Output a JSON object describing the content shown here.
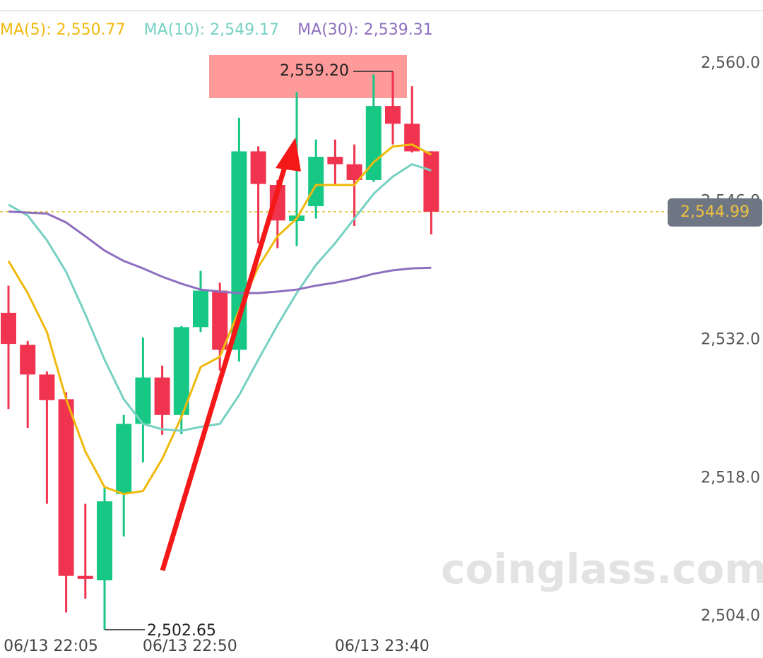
{
  "chart_data": {
    "type": "candlestick",
    "categories": [
      "06/13 22:05",
      null,
      null,
      null,
      null,
      null,
      null,
      null,
      null,
      "06/13 22:50",
      null,
      null,
      null,
      null,
      null,
      null,
      null,
      null,
      null,
      "06/13 23:40",
      null,
      null,
      null
    ],
    "open": [
      2534.75,
      2531.5,
      2528.5,
      2526.0,
      2508.1,
      2507.65,
      2516.4,
      2523.5,
      2528.2,
      2524.4,
      2533.3,
      2537.0,
      2531.0,
      2551.1,
      2547.7,
      2544.05,
      2545.55,
      2550.55,
      2549.8,
      2548.2,
      2555.7,
      2553.9,
      2551.1
    ],
    "high": [
      2537.5,
      2531.9,
      2528.8,
      2526.7,
      2515.4,
      2517.1,
      2524.4,
      2532.25,
      2529.4,
      2533.4,
      2539.0,
      2537.8,
      2554.5,
      2551.6,
      2548.2,
      2557.1,
      2552.3,
      2552.3,
      2551.8,
      2558.9,
      2559.2,
      2557.7,
      2551.1
    ],
    "low": [
      2525.0,
      2523.1,
      2515.4,
      2504.4,
      2505.8,
      2502.65,
      2512.1,
      2519.6,
      2522.4,
      2522.45,
      2532.8,
      2528.9,
      2529.8,
      2541.8,
      2541.3,
      2541.5,
      2544.3,
      2547.7,
      2543.55,
      2548.0,
      2551.8,
      2551.0,
      2542.7
    ],
    "close": [
      2531.6,
      2528.5,
      2525.9,
      2508.1,
      2507.8,
      2515.65,
      2523.5,
      2528.2,
      2524.4,
      2533.3,
      2537.0,
      2531.0,
      2551.1,
      2547.8,
      2544.1,
      2544.6,
      2550.55,
      2549.8,
      2548.2,
      2555.7,
      2553.9,
      2551.1,
      2544.99
    ],
    "up_color": "#17c784",
    "down_color": "#f0344f",
    "series": [
      {
        "name": "MA(5): 2,550.77",
        "color": "#f0b90b",
        "values": [
          2540.0,
          2536.75,
          2532.8,
          2526.0,
          2520.7,
          2517.1,
          2516.4,
          2516.7,
          2519.95,
          2524.2,
          2529.25,
          2530.3,
          2535.0,
          2539.4,
          2542.5,
          2544.3,
          2547.7,
          2547.7,
          2547.7,
          2550.0,
          2551.6,
          2551.8,
          2550.77
        ]
      },
      {
        "name": "MA(10): 2,549.17",
        "color": "#76d1c3",
        "values": [
          2545.7,
          2544.6,
          2542.1,
          2538.9,
          2534.6,
          2530.0,
          2526.0,
          2523.5,
          2522.95,
          2522.8,
          2523.2,
          2523.5,
          2526.4,
          2530.0,
          2533.5,
          2536.75,
          2539.6,
          2541.8,
          2544.3,
          2546.8,
          2548.55,
          2549.8,
          2549.17
        ]
      },
      {
        "name": "MA(30): 2,539.31",
        "color": "#8e6fbf",
        "values": [
          2545.0,
          2544.9,
          2544.8,
          2543.9,
          2542.5,
          2541.05,
          2540.0,
          2539.25,
          2538.4,
          2537.7,
          2537.1,
          2536.9,
          2536.75,
          2536.75,
          2536.9,
          2537.1,
          2537.5,
          2537.8,
          2538.2,
          2538.7,
          2539.05,
          2539.25,
          2539.31
        ]
      }
    ],
    "ylim": [
      2502,
      2562
    ],
    "yticks": [
      {
        "value": 2504,
        "label": "2,504.0"
      },
      {
        "value": 2518,
        "label": "2,518.0"
      },
      {
        "value": 2532,
        "label": "2,532.0"
      },
      {
        "value": 2546,
        "label": "2,546.0"
      },
      {
        "value": 2560,
        "label": "2,560.0"
      }
    ],
    "last_price": {
      "value": 2544.99,
      "label": "2,544.99"
    },
    "annotations": [
      {
        "value": 2559.2,
        "label": "2,559.20"
      },
      {
        "value": 2502.65,
        "label": "2,502.65"
      }
    ],
    "watermark": "coinglass.com"
  }
}
